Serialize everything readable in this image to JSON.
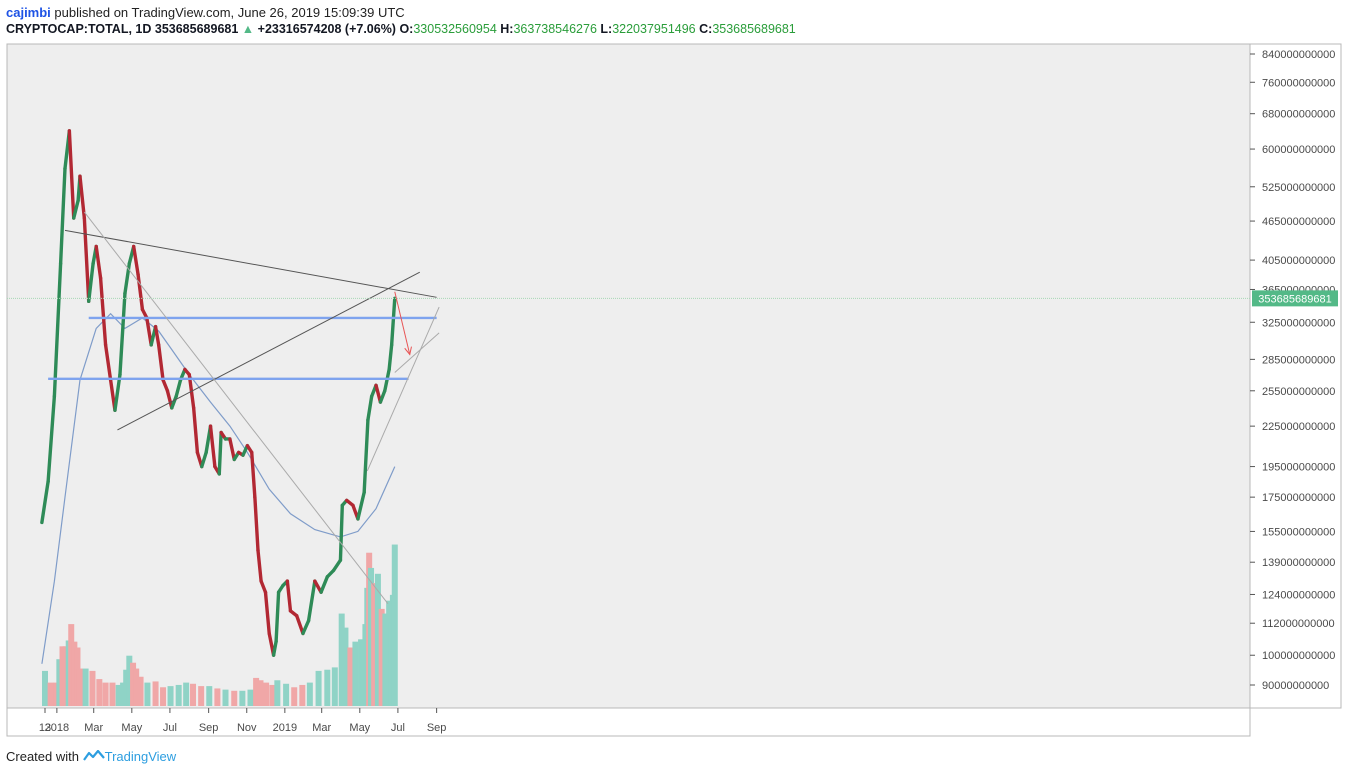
{
  "header": {
    "user": "cajimbi",
    "published_text": "published on TradingView.com, June 26, 2019 15:09:39 UTC",
    "symbol": "CRYPTOCAP:TOTAL, 1D",
    "last": "353685689681",
    "change_arrow": "▲",
    "change": "+23316574208 (+7.06%)",
    "o_label": "O:",
    "o": "330532560954",
    "h_label": "H:",
    "h": "363738546276",
    "l_label": "L:",
    "l": "322037951496",
    "c_label": "C:",
    "c": "353685689681"
  },
  "footer": {
    "created_with": "Created with",
    "brand": "TradingView"
  },
  "colors": {
    "up": "#53b987",
    "down": "#b22833",
    "sr_line": "#7ea3ee",
    "ma": "#7f9cc9",
    "projection": "#e85555"
  },
  "chart_data": {
    "type": "candlestick",
    "interval": "1D",
    "price_scale": "log",
    "last_price_label": "353685689681",
    "y_ticks": [
      840000000000,
      760000000000,
      680000000000,
      600000000000,
      525000000000,
      465000000000,
      405000000000,
      365000000000,
      325000000000,
      285000000000,
      255000000000,
      225000000000,
      195000000000,
      175000000000,
      155000000000,
      139000000000,
      124000000000,
      112000000000,
      100000000000,
      90000000000
    ],
    "y_tick_labels": [
      "840000000000",
      "760000000000",
      "680000000000",
      "600000000000",
      "525000000000",
      "465000000000",
      "405000000000",
      "365000000000",
      "325000000000",
      "285000000000",
      "255000000000",
      "225000000000",
      "195000000000",
      "175000000000",
      "155000000000",
      "139000000000",
      "124000000000",
      "112000000000",
      "100000000000",
      "90000000000"
    ],
    "x_ticks": [
      "13",
      "2018",
      "Mar",
      "May",
      "Jul",
      "Sep",
      "Nov",
      "2019",
      "Mar",
      "May",
      "Jul",
      "Sep"
    ],
    "x_tick_dates": [
      "2017-12-13",
      "2018-01-01",
      "2018-03-01",
      "2018-05-01",
      "2018-07-01",
      "2018-09-01",
      "2018-11-01",
      "2019-01-01",
      "2019-03-01",
      "2019-05-01",
      "2019-07-01",
      "2019-09-01"
    ],
    "close_path": [
      {
        "date": "2017-12-08",
        "close": 160000000000
      },
      {
        "date": "2017-12-18",
        "close": 185000000000
      },
      {
        "date": "2017-12-28",
        "close": 250000000000
      },
      {
        "date": "2018-01-07",
        "close": 400000000000
      },
      {
        "date": "2018-01-14",
        "close": 560000000000
      },
      {
        "date": "2018-01-21",
        "close": 640000000000
      },
      {
        "date": "2018-01-28",
        "close": 470000000000
      },
      {
        "date": "2018-02-04",
        "close": 500000000000
      },
      {
        "date": "2018-02-07",
        "close": 545000000000
      },
      {
        "date": "2018-02-14",
        "close": 470000000000
      },
      {
        "date": "2018-02-21",
        "close": 350000000000
      },
      {
        "date": "2018-02-28",
        "close": 400000000000
      },
      {
        "date": "2018-03-05",
        "close": 425000000000
      },
      {
        "date": "2018-03-12",
        "close": 380000000000
      },
      {
        "date": "2018-03-20",
        "close": 300000000000
      },
      {
        "date": "2018-03-28",
        "close": 265000000000
      },
      {
        "date": "2018-04-04",
        "close": 238000000000
      },
      {
        "date": "2018-04-12",
        "close": 270000000000
      },
      {
        "date": "2018-04-20",
        "close": 360000000000
      },
      {
        "date": "2018-04-27",
        "close": 400000000000
      },
      {
        "date": "2018-05-04",
        "close": 425000000000
      },
      {
        "date": "2018-05-11",
        "close": 385000000000
      },
      {
        "date": "2018-05-18",
        "close": 340000000000
      },
      {
        "date": "2018-05-25",
        "close": 330000000000
      },
      {
        "date": "2018-06-01",
        "close": 300000000000
      },
      {
        "date": "2018-06-08",
        "close": 320000000000
      },
      {
        "date": "2018-06-13",
        "close": 300000000000
      },
      {
        "date": "2018-06-20",
        "close": 265000000000
      },
      {
        "date": "2018-06-27",
        "close": 255000000000
      },
      {
        "date": "2018-07-04",
        "close": 240000000000
      },
      {
        "date": "2018-07-11",
        "close": 250000000000
      },
      {
        "date": "2018-07-18",
        "close": 265000000000
      },
      {
        "date": "2018-07-25",
        "close": 275000000000
      },
      {
        "date": "2018-08-01",
        "close": 270000000000
      },
      {
        "date": "2018-08-08",
        "close": 240000000000
      },
      {
        "date": "2018-08-14",
        "close": 205000000000
      },
      {
        "date": "2018-08-21",
        "close": 195000000000
      },
      {
        "date": "2018-08-28",
        "close": 205000000000
      },
      {
        "date": "2018-09-04",
        "close": 225000000000
      },
      {
        "date": "2018-09-11",
        "close": 195000000000
      },
      {
        "date": "2018-09-18",
        "close": 190000000000
      },
      {
        "date": "2018-09-21",
        "close": 220000000000
      },
      {
        "date": "2018-09-28",
        "close": 215000000000
      },
      {
        "date": "2018-10-05",
        "close": 215000000000
      },
      {
        "date": "2018-10-12",
        "close": 200000000000
      },
      {
        "date": "2018-10-19",
        "close": 205000000000
      },
      {
        "date": "2018-10-26",
        "close": 203000000000
      },
      {
        "date": "2018-11-02",
        "close": 210000000000
      },
      {
        "date": "2018-11-09",
        "close": 205000000000
      },
      {
        "date": "2018-11-14",
        "close": 175000000000
      },
      {
        "date": "2018-11-19",
        "close": 145000000000
      },
      {
        "date": "2018-11-24",
        "close": 130000000000
      },
      {
        "date": "2018-12-01",
        "close": 125000000000
      },
      {
        "date": "2018-12-07",
        "close": 108000000000
      },
      {
        "date": "2018-12-14",
        "close": 100000000000
      },
      {
        "date": "2018-12-18",
        "close": 105000000000
      },
      {
        "date": "2018-12-22",
        "close": 125000000000
      },
      {
        "date": "2018-12-29",
        "close": 128000000000
      },
      {
        "date": "2019-01-05",
        "close": 130000000000
      },
      {
        "date": "2019-01-10",
        "close": 117000000000
      },
      {
        "date": "2019-01-20",
        "close": 115000000000
      },
      {
        "date": "2019-01-30",
        "close": 108000000000
      },
      {
        "date": "2019-02-08",
        "close": 113000000000
      },
      {
        "date": "2019-02-18",
        "close": 130000000000
      },
      {
        "date": "2019-02-28",
        "close": 125000000000
      },
      {
        "date": "2019-03-10",
        "close": 132000000000
      },
      {
        "date": "2019-03-20",
        "close": 135000000000
      },
      {
        "date": "2019-03-31",
        "close": 140000000000
      },
      {
        "date": "2019-04-03",
        "close": 170000000000
      },
      {
        "date": "2019-04-10",
        "close": 173000000000
      },
      {
        "date": "2019-04-20",
        "close": 170000000000
      },
      {
        "date": "2019-04-28",
        "close": 162000000000
      },
      {
        "date": "2019-05-08",
        "close": 178000000000
      },
      {
        "date": "2019-05-14",
        "close": 230000000000
      },
      {
        "date": "2019-05-20",
        "close": 250000000000
      },
      {
        "date": "2019-05-27",
        "close": 260000000000
      },
      {
        "date": "2019-06-03",
        "close": 245000000000
      },
      {
        "date": "2019-06-10",
        "close": 255000000000
      },
      {
        "date": "2019-06-17",
        "close": 275000000000
      },
      {
        "date": "2019-06-21",
        "close": 300000000000
      },
      {
        "date": "2019-06-26",
        "close": 353685689681
      }
    ],
    "moving_average_path": [
      {
        "date": "2017-12-08",
        "value": 97000000000
      },
      {
        "date": "2017-12-28",
        "value": 130000000000
      },
      {
        "date": "2018-01-14",
        "value": 175000000000
      },
      {
        "date": "2018-02-07",
        "value": 265000000000
      },
      {
        "date": "2018-03-05",
        "value": 318000000000
      },
      {
        "date": "2018-03-28",
        "value": 335000000000
      },
      {
        "date": "2018-04-20",
        "value": 318000000000
      },
      {
        "date": "2018-05-18",
        "value": 330000000000
      },
      {
        "date": "2018-06-13",
        "value": 315000000000
      },
      {
        "date": "2018-07-04",
        "value": 295000000000
      },
      {
        "date": "2018-08-01",
        "value": 270000000000
      },
      {
        "date": "2018-09-04",
        "value": 245000000000
      },
      {
        "date": "2018-10-05",
        "value": 225000000000
      },
      {
        "date": "2018-11-02",
        "value": 205000000000
      },
      {
        "date": "2018-12-07",
        "value": 180000000000
      },
      {
        "date": "2019-01-10",
        "value": 165000000000
      },
      {
        "date": "2019-02-18",
        "value": 156000000000
      },
      {
        "date": "2019-03-31",
        "value": 152000000000
      },
      {
        "date": "2019-04-28",
        "value": 155000000000
      },
      {
        "date": "2019-05-27",
        "value": 168000000000
      },
      {
        "date": "2019-06-26",
        "value": 195000000000
      }
    ],
    "volume_scale": [
      0,
      14
    ],
    "volume_bars": [
      {
        "date": "2017-12-13",
        "v": 3.0,
        "dir": "up"
      },
      {
        "date": "2017-12-22",
        "v": 2.0,
        "dir": "down"
      },
      {
        "date": "2017-12-31",
        "v": 2.0,
        "dir": "down"
      },
      {
        "date": "2018-01-05",
        "v": 4.0,
        "dir": "up"
      },
      {
        "date": "2018-01-10",
        "v": 5.1,
        "dir": "down"
      },
      {
        "date": "2018-01-15",
        "v": 5.1,
        "dir": "down"
      },
      {
        "date": "2018-01-20",
        "v": 5.6,
        "dir": "up"
      },
      {
        "date": "2018-01-24",
        "v": 7.0,
        "dir": "down"
      },
      {
        "date": "2018-01-29",
        "v": 5.5,
        "dir": "down"
      },
      {
        "date": "2018-02-03",
        "v": 5.0,
        "dir": "down"
      },
      {
        "date": "2018-02-07",
        "v": 3.2,
        "dir": "down"
      },
      {
        "date": "2018-02-16",
        "v": 3.2,
        "dir": "up"
      },
      {
        "date": "2018-02-27",
        "v": 3.0,
        "dir": "down"
      },
      {
        "date": "2018-03-10",
        "v": 2.3,
        "dir": "down"
      },
      {
        "date": "2018-03-20",
        "v": 2.0,
        "dir": "down"
      },
      {
        "date": "2018-03-31",
        "v": 2.0,
        "dir": "down"
      },
      {
        "date": "2018-04-10",
        "v": 1.8,
        "dir": "up"
      },
      {
        "date": "2018-04-17",
        "v": 2.0,
        "dir": "up"
      },
      {
        "date": "2018-04-22",
        "v": 3.1,
        "dir": "up"
      },
      {
        "date": "2018-04-27",
        "v": 4.3,
        "dir": "up"
      },
      {
        "date": "2018-05-03",
        "v": 3.7,
        "dir": "down"
      },
      {
        "date": "2018-05-08",
        "v": 3.2,
        "dir": "down"
      },
      {
        "date": "2018-05-15",
        "v": 2.5,
        "dir": "down"
      },
      {
        "date": "2018-05-26",
        "v": 2.0,
        "dir": "up"
      },
      {
        "date": "2018-06-08",
        "v": 2.1,
        "dir": "down"
      },
      {
        "date": "2018-06-20",
        "v": 1.6,
        "dir": "down"
      },
      {
        "date": "2018-07-02",
        "v": 1.7,
        "dir": "up"
      },
      {
        "date": "2018-07-15",
        "v": 1.8,
        "dir": "up"
      },
      {
        "date": "2018-07-27",
        "v": 2.0,
        "dir": "up"
      },
      {
        "date": "2018-08-07",
        "v": 1.9,
        "dir": "down"
      },
      {
        "date": "2018-08-20",
        "v": 1.7,
        "dir": "down"
      },
      {
        "date": "2018-09-02",
        "v": 1.7,
        "dir": "up"
      },
      {
        "date": "2018-09-15",
        "v": 1.5,
        "dir": "down"
      },
      {
        "date": "2018-09-28",
        "v": 1.4,
        "dir": "up"
      },
      {
        "date": "2018-10-12",
        "v": 1.3,
        "dir": "down"
      },
      {
        "date": "2018-10-25",
        "v": 1.3,
        "dir": "up"
      },
      {
        "date": "2018-11-07",
        "v": 1.4,
        "dir": "up"
      },
      {
        "date": "2018-11-16",
        "v": 2.4,
        "dir": "down"
      },
      {
        "date": "2018-11-23",
        "v": 2.2,
        "dir": "down"
      },
      {
        "date": "2018-12-02",
        "v": 2.0,
        "dir": "down"
      },
      {
        "date": "2018-12-12",
        "v": 1.8,
        "dir": "down"
      },
      {
        "date": "2018-12-20",
        "v": 2.2,
        "dir": "up"
      },
      {
        "date": "2019-01-03",
        "v": 1.9,
        "dir": "up"
      },
      {
        "date": "2019-01-16",
        "v": 1.6,
        "dir": "down"
      },
      {
        "date": "2019-01-29",
        "v": 1.8,
        "dir": "down"
      },
      {
        "date": "2019-02-10",
        "v": 2.0,
        "dir": "up"
      },
      {
        "date": "2019-02-24",
        "v": 3.0,
        "dir": "up"
      },
      {
        "date": "2019-03-10",
        "v": 3.1,
        "dir": "up"
      },
      {
        "date": "2019-03-22",
        "v": 3.3,
        "dir": "up"
      },
      {
        "date": "2019-04-02",
        "v": 7.9,
        "dir": "up"
      },
      {
        "date": "2019-04-08",
        "v": 6.7,
        "dir": "up"
      },
      {
        "date": "2019-04-16",
        "v": 5.0,
        "dir": "down"
      },
      {
        "date": "2019-04-24",
        "v": 5.5,
        "dir": "up"
      },
      {
        "date": "2019-05-03",
        "v": 5.7,
        "dir": "up"
      },
      {
        "date": "2019-05-10",
        "v": 7.0,
        "dir": "up"
      },
      {
        "date": "2019-05-13",
        "v": 10.1,
        "dir": "up"
      },
      {
        "date": "2019-05-16",
        "v": 13.1,
        "dir": "down"
      },
      {
        "date": "2019-05-19",
        "v": 11.8,
        "dir": "up"
      },
      {
        "date": "2019-05-24",
        "v": 10.5,
        "dir": "down"
      },
      {
        "date": "2019-05-30",
        "v": 11.3,
        "dir": "up"
      },
      {
        "date": "2019-06-05",
        "v": 8.3,
        "dir": "down"
      },
      {
        "date": "2019-06-11",
        "v": 7.9,
        "dir": "up"
      },
      {
        "date": "2019-06-17",
        "v": 9.0,
        "dir": "up"
      },
      {
        "date": "2019-06-21",
        "v": 7.1,
        "dir": "up"
      },
      {
        "date": "2019-06-23",
        "v": 9.5,
        "dir": "up"
      },
      {
        "date": "2019-06-26",
        "v": 13.8,
        "dir": "up"
      }
    ],
    "horizontal_levels": [
      {
        "value": 330000000000,
        "from": "2018-02-21",
        "to": "2019-09-01"
      },
      {
        "value": 266000000000,
        "from": "2017-12-18",
        "to": "2019-07-18"
      }
    ],
    "trendlines": [
      {
        "from_date": "2018-01-14",
        "from_value": 450000000000,
        "to_date": "2019-09-01",
        "to_value": 355000000000
      },
      {
        "from_date": "2018-04-08",
        "from_value": 222000000000,
        "to_date": "2019-08-05",
        "to_value": 388000000000
      },
      {
        "from_date": "2018-02-14",
        "from_value": 480000000000,
        "to_date": "2019-06-15",
        "to_value": 120000000000
      },
      {
        "from_date": "2019-05-13",
        "from_value": 192000000000,
        "to_date": "2019-09-05",
        "to_value": 343000000000
      },
      {
        "from_date": "2019-06-26",
        "from_value": 272000000000,
        "to_date": "2019-09-05",
        "to_value": 313000000000
      }
    ],
    "projection_arrow": {
      "from_date": "2019-06-26",
      "from_value": 362000000000,
      "to_date": "2019-07-20",
      "to_value": 290000000000
    }
  }
}
